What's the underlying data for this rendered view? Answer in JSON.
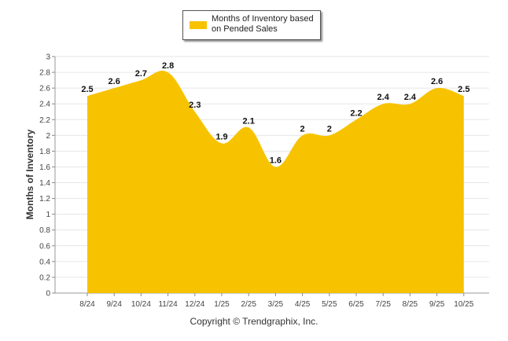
{
  "chart_data": {
    "type": "area",
    "categories": [
      "8/24",
      "9/24",
      "10/24",
      "11/24",
      "12/24",
      "1/25",
      "2/25",
      "3/25",
      "4/25",
      "5/25",
      "6/25",
      "7/25",
      "8/25",
      "9/25",
      "10/25"
    ],
    "series": [
      {
        "name": "Months of Inventory based on Pended Sales",
        "values": [
          2.5,
          2.6,
          2.7,
          2.8,
          2.3,
          1.9,
          2.1,
          1.6,
          2.0,
          2.0,
          2.2,
          2.4,
          2.4,
          2.6,
          2.5
        ],
        "labels": [
          "2.5",
          "2.6",
          "2.7",
          "2.8",
          "2.3",
          "1.9",
          "2.1",
          "1.6",
          "2",
          "2",
          "2.2",
          "2.4",
          "2.4",
          "2.6",
          "2.5"
        ],
        "color": "#F7C300"
      }
    ],
    "ylabel": "Months of Inventory",
    "ylim": [
      0,
      3
    ],
    "yticks": [
      "0",
      "0.2",
      "0.4",
      "0.6",
      "0.8",
      "1",
      "1.2",
      "1.4",
      "1.6",
      "1.8",
      "2",
      "2.2",
      "2.4",
      "2.6",
      "2.8",
      "3"
    ],
    "grid": true,
    "legend": "top-center"
  },
  "legend_text": "Months of Inventory based on Pended Sales",
  "footer_text": "Copyright © Trendgraphix, Inc."
}
